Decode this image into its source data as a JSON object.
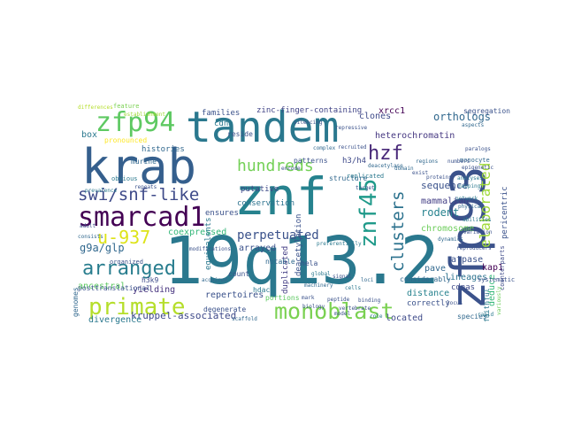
{
  "words": [
    {
      "text": "19q13.2",
      "color": "#2a788e"
    },
    {
      "text": "znf",
      "color": "#26828e"
    },
    {
      "text": "krab",
      "color": "#355f8d"
    },
    {
      "text": "tandem",
      "color": "#2a788e"
    },
    {
      "text": "zfp93",
      "color": "#3b528b"
    },
    {
      "text": "smarcad1",
      "color": "#440154"
    },
    {
      "text": "zfp94",
      "color": "#5ec962"
    },
    {
      "text": "monoblast",
      "color": "#7ad151"
    },
    {
      "text": "primate",
      "color": "#b5de2b"
    },
    {
      "text": "arranged",
      "color": "#287d8e"
    },
    {
      "text": "swi/snf-like",
      "color": "#3e4a89"
    },
    {
      "text": "hundreds",
      "color": "#73d056"
    },
    {
      "text": "hzf",
      "color": "#482878"
    },
    {
      "text": "znf45",
      "color": "#1f9a8a"
    },
    {
      "text": "clusters",
      "color": "#2c728e"
    },
    {
      "text": "elaborated",
      "color": "#a0da39"
    },
    {
      "text": "u-937",
      "color": "#dde318"
    },
    {
      "text": "perpetuated",
      "color": "#3b528b"
    },
    {
      "text": "g9a/glp",
      "color": "#31688e"
    },
    {
      "text": "kruppel-associated",
      "color": "#3e4989"
    },
    {
      "text": "divergence",
      "color": "#2a788e"
    },
    {
      "text": "repertoires",
      "color": "#3b528b"
    },
    {
      "text": "heterochromatin",
      "color": "#453781"
    },
    {
      "text": "orthologs",
      "color": "#31688e"
    },
    {
      "text": "sequence",
      "color": "#3b528b"
    },
    {
      "text": "rodent",
      "color": "#26828e"
    },
    {
      "text": "mammalian",
      "color": "#433e85"
    },
    {
      "text": "chromosome",
      "color": "#6ccd5a"
    },
    {
      "text": "atpase",
      "color": "#3b528b"
    },
    {
      "text": "kap1",
      "color": "#440154"
    },
    {
      "text": "cdnas",
      "color": "#3e4a89"
    },
    {
      "text": "lineages",
      "color": "#2c728e"
    },
    {
      "text": "pave",
      "color": "#31688e"
    },
    {
      "text": "deduce",
      "color": "#35b779"
    },
    {
      "text": "faithful",
      "color": "#2a788e"
    },
    {
      "text": "distance",
      "color": "#26828e"
    },
    {
      "text": "correctly",
      "color": "#3b528b"
    },
    {
      "text": "species",
      "color": "#31688e"
    },
    {
      "text": "located",
      "color": "#3e4a89"
    },
    {
      "text": "arrayed",
      "color": "#3b528b"
    },
    {
      "text": "hdac1",
      "color": "#2a788e"
    },
    {
      "text": "duplicated",
      "color": "#433e85"
    },
    {
      "text": "deacetylation",
      "color": "#3b528b"
    },
    {
      "text": "coexpressed",
      "color": "#35b779"
    },
    {
      "text": "yielding",
      "color": "#46337e"
    },
    {
      "text": "ancestral",
      "color": "#5ec962"
    },
    {
      "text": "xrcc1",
      "color": "#440154"
    },
    {
      "text": "clones",
      "color": "#3e4a89"
    },
    {
      "text": "segregation",
      "color": "#3b528b"
    },
    {
      "text": "zinc-finger-containing",
      "color": "#414487"
    },
    {
      "text": "cdna",
      "color": "#2a788e"
    },
    {
      "text": "families",
      "color": "#3b528b"
    },
    {
      "text": "histories",
      "color": "#31688e"
    },
    {
      "text": "putative",
      "color": "#3e4a89"
    },
    {
      "text": "conservation",
      "color": "#2c728e"
    },
    {
      "text": "ensures",
      "color": "#3b528b"
    },
    {
      "text": "murine",
      "color": "#31688e"
    },
    {
      "text": "pronounced",
      "color": "#fde725"
    },
    {
      "text": "reside",
      "color": "#3b528b"
    },
    {
      "text": "h3/h4",
      "color": "#3e4989"
    },
    {
      "text": "pericentric",
      "color": "#3b528b"
    },
    {
      "text": "box",
      "color": "#2a788e"
    },
    {
      "text": "genomes",
      "color": "#31688e"
    },
    {
      "text": "posttranslational",
      "color": "#3b528b"
    },
    {
      "text": "h3k9",
      "color": "#3e4a89"
    },
    {
      "text": "equivalents",
      "color": "#2a788e"
    },
    {
      "text": "portions",
      "color": "#5ec962"
    },
    {
      "text": "count",
      "color": "#3b528b"
    },
    {
      "text": "notable",
      "color": "#31688e"
    },
    {
      "text": "degenerate",
      "color": "#3b528b"
    },
    {
      "text": "feature",
      "color": "#7ad151"
    },
    {
      "text": "structure",
      "color": "#31688e"
    },
    {
      "text": "patterns",
      "color": "#3b528b"
    },
    {
      "text": "considerably",
      "color": "#31688e"
    },
    {
      "text": "organized",
      "color": "#3b528b"
    },
    {
      "text": "obvious",
      "color": "#2a788e"
    },
    {
      "text": "systematic",
      "color": "#3b528b"
    },
    {
      "text": "counterparts",
      "color": "#3e4a89"
    },
    {
      "text": "monocyte",
      "color": "#31688e"
    },
    {
      "text": "hela",
      "color": "#3b528b"
    },
    {
      "text": "replicated",
      "color": "#2a788e"
    },
    {
      "text": "differences",
      "color": "#b5de2b"
    },
    {
      "text": "repeats",
      "color": "#3b528b"
    },
    {
      "text": "regions",
      "color": "#31688e"
    },
    {
      "text": "encode",
      "color": "#3b528b"
    },
    {
      "text": "machinery",
      "color": "#31688e"
    },
    {
      "text": "peptide",
      "color": "#3b528b"
    },
    {
      "text": "preferentially",
      "color": "#2a788e"
    },
    {
      "text": "modifications",
      "color": "#3b528b"
    },
    {
      "text": "acquired",
      "color": "#31688e"
    },
    {
      "text": "biology",
      "color": "#3b528b"
    },
    {
      "text": "prevalence",
      "color": "#2a788e"
    },
    {
      "text": "recruited",
      "color": "#3b528b"
    },
    {
      "text": "aspects",
      "color": "#31688e"
    },
    {
      "text": "epigenetic",
      "color": "#3b528b"
    },
    {
      "text": "global",
      "color": "#2a788e"
    },
    {
      "text": "numbers",
      "color": "#3b528b"
    },
    {
      "text": "variously",
      "color": "#6ccd5a"
    },
    {
      "text": "physical",
      "color": "#31688e"
    },
    {
      "text": "reproducers",
      "color": "#3b528b"
    },
    {
      "text": "abilities",
      "color": "#2a788e"
    },
    {
      "text": "adult",
      "color": "#3b528b"
    },
    {
      "text": "consists",
      "color": "#31688e"
    },
    {
      "text": "exist",
      "color": "#3b528b"
    },
    {
      "text": "establishment",
      "color": "#a0da39"
    },
    {
      "text": "vertebrate",
      "color": "#3b528b"
    },
    {
      "text": "deacetylase",
      "color": "#31688e"
    },
    {
      "text": "locus",
      "color": "#3b528b"
    },
    {
      "text": "mapping",
      "color": "#2a788e"
    },
    {
      "text": "silencing",
      "color": "#3b528b"
    },
    {
      "text": "scaffold",
      "color": "#31688e"
    },
    {
      "text": "binding",
      "color": "#3b528b"
    },
    {
      "text": "analyses",
      "color": "#2a788e"
    },
    {
      "text": "paralogs",
      "color": "#3b528b"
    },
    {
      "text": "domain",
      "color": "#31688e"
    },
    {
      "text": "model",
      "color": "#3b528b"
    },
    {
      "text": "role",
      "color": "#2a788e"
    },
    {
      "text": "repressive",
      "color": "#3b528b"
    },
    {
      "text": "complex",
      "color": "#31688e"
    },
    {
      "text": "mark",
      "color": "#3b528b"
    },
    {
      "text": "network",
      "color": "#2a788e"
    },
    {
      "text": "target",
      "color": "#3b528b"
    },
    {
      "text": "loci",
      "color": "#31688e"
    },
    {
      "text": "signal",
      "color": "#3b528b"
    },
    {
      "text": "cells",
      "color": "#2a788e"
    },
    {
      "text": "proteins",
      "color": "#3b528b"
    },
    {
      "text": "dynamics",
      "color": "#31688e"
    },
    {
      "text": "variation",
      "color": "#3b528b"
    },
    {
      "text": "rapid",
      "color": "#2a788e"
    }
  ]
}
